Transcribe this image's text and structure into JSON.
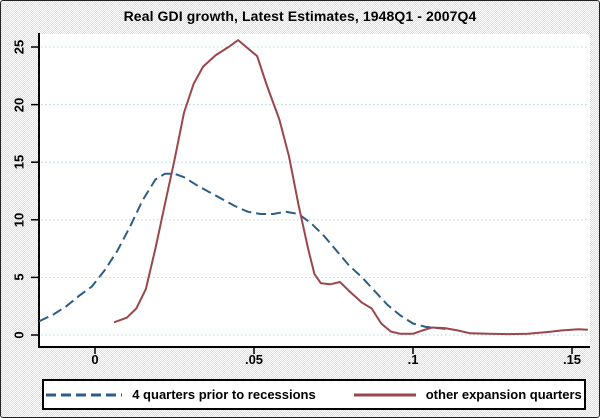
{
  "figure": {
    "title": "Real GDI growth, Latest Estimates, 1948Q1 - 2007Q4"
  },
  "colors": {
    "navy": "#2b5d88",
    "maroon": "#9b464b",
    "grid": "#a5d6e6",
    "axis": "#000000",
    "plot_bg": "#ffffff",
    "legend_border": "#000000",
    "outer_bg_dot": "#cfe3ee"
  },
  "legend": {
    "items": [
      {
        "label": "4 quarters prior to recessions",
        "style": "dashed",
        "color": "#2b5d88"
      },
      {
        "label": "other expansion quarters",
        "style": "solid",
        "color": "#9b464b"
      }
    ]
  },
  "chart_data": {
    "type": "line",
    "title": "Real GDI growth, Latest Estimates, 1948Q1 - 2007Q4",
    "xlabel": "",
    "ylabel": "",
    "xlim": [
      -0.018,
      0.156
    ],
    "ylim": [
      -0.8,
      26.5
    ],
    "grid": "horizontal-dotted",
    "legend_position": "bottom",
    "x_tick_values": [
      0,
      0.05,
      0.1,
      0.15
    ],
    "x_tick_labels": [
      "0",
      ".05",
      ".1",
      ".15"
    ],
    "y_tick_values": [
      0,
      5,
      10,
      15,
      20,
      25
    ],
    "y_tick_labels": [
      "0",
      "5",
      "10",
      "15",
      "20",
      "25"
    ],
    "series": [
      {
        "name": "4 quarters prior to recessions",
        "color": "#2b5d88",
        "style": "dashed",
        "points": [
          [
            -0.0175,
            1.2
          ],
          [
            -0.013,
            1.8
          ],
          [
            -0.009,
            2.5
          ],
          [
            -0.005,
            3.4
          ],
          [
            -0.001,
            4.2
          ],
          [
            0.003,
            5.6
          ],
          [
            0.007,
            7.3
          ],
          [
            0.011,
            9.4
          ],
          [
            0.015,
            11.7
          ],
          [
            0.019,
            13.5
          ],
          [
            0.022,
            14.0
          ],
          [
            0.025,
            14.0
          ],
          [
            0.028,
            13.7
          ],
          [
            0.032,
            13.0
          ],
          [
            0.036,
            12.4
          ],
          [
            0.04,
            11.8
          ],
          [
            0.044,
            11.2
          ],
          [
            0.048,
            10.7
          ],
          [
            0.052,
            10.5
          ],
          [
            0.056,
            10.5
          ],
          [
            0.06,
            10.7
          ],
          [
            0.064,
            10.5
          ],
          [
            0.068,
            9.7
          ],
          [
            0.072,
            8.6
          ],
          [
            0.076,
            7.3
          ],
          [
            0.08,
            6.0
          ],
          [
            0.084,
            5.0
          ],
          [
            0.088,
            3.8
          ],
          [
            0.092,
            2.6
          ],
          [
            0.096,
            1.7
          ],
          [
            0.1,
            1.0
          ],
          [
            0.104,
            0.7
          ],
          [
            0.108,
            0.6
          ],
          [
            0.111,
            0.5
          ]
        ]
      },
      {
        "name": "other expansion quarters",
        "color": "#9b464b",
        "style": "solid",
        "points": [
          [
            0.006,
            1.1
          ],
          [
            0.01,
            1.5
          ],
          [
            0.013,
            2.3
          ],
          [
            0.016,
            4.0
          ],
          [
            0.019,
            7.5
          ],
          [
            0.022,
            11.4
          ],
          [
            0.025,
            15.2
          ],
          [
            0.028,
            19.3
          ],
          [
            0.031,
            21.8
          ],
          [
            0.034,
            23.3
          ],
          [
            0.038,
            24.3
          ],
          [
            0.042,
            25.0
          ],
          [
            0.045,
            25.6
          ],
          [
            0.051,
            24.2
          ],
          [
            0.054,
            21.7
          ],
          [
            0.058,
            18.7
          ],
          [
            0.061,
            15.5
          ],
          [
            0.064,
            11.3
          ],
          [
            0.067,
            7.5
          ],
          [
            0.069,
            5.3
          ],
          [
            0.071,
            4.5
          ],
          [
            0.074,
            4.4
          ],
          [
            0.077,
            4.6
          ],
          [
            0.08,
            3.8
          ],
          [
            0.084,
            2.8
          ],
          [
            0.087,
            2.3
          ],
          [
            0.09,
            1.0
          ],
          [
            0.093,
            0.3
          ],
          [
            0.096,
            0.1
          ],
          [
            0.1,
            0.1
          ],
          [
            0.103,
            0.4
          ],
          [
            0.106,
            0.65
          ],
          [
            0.11,
            0.6
          ],
          [
            0.114,
            0.4
          ],
          [
            0.118,
            0.15
          ],
          [
            0.124,
            0.1
          ],
          [
            0.13,
            0.08
          ],
          [
            0.136,
            0.1
          ],
          [
            0.142,
            0.25
          ],
          [
            0.147,
            0.4
          ],
          [
            0.152,
            0.5
          ],
          [
            0.155,
            0.45
          ]
        ]
      }
    ]
  }
}
